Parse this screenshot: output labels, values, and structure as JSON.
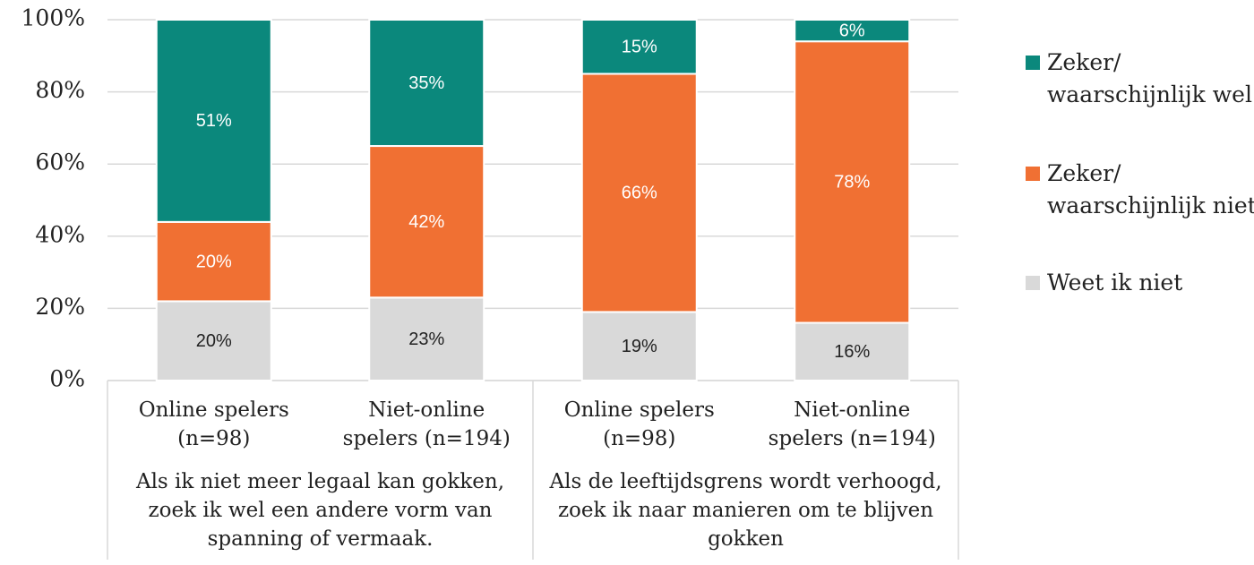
{
  "chart_data": {
    "type": "bar",
    "stack": "percent",
    "categories": [
      "Online spelers (n=98)",
      "Niet-online spelers (n=194)",
      "Online spelers (n=98)",
      "Niet-online spelers (n=194)"
    ],
    "groups": [
      "Als ik niet meer legaal kan gokken, zoek ik wel een andere vorm van spanning of vermaak.",
      "Als de leeftijdsgrens wordt verhoogd, zoek ik naar manieren om te blijven gokken"
    ],
    "series": [
      {
        "name": "Zeker/ waarschijnlijk wel",
        "color": "#0b887c",
        "values": [
          51,
          35,
          15,
          6
        ],
        "value_labels": [
          "51%",
          "35%",
          "15%",
          "6%"
        ]
      },
      {
        "name": "Zeker/ waarschijnlijk niet",
        "color": "#f07033",
        "values": [
          20,
          42,
          66,
          78
        ],
        "value_labels": [
          "20%",
          "42%",
          "66%",
          "78%"
        ]
      },
      {
        "name": "Weet ik niet",
        "color": "#d9d9d9",
        "values": [
          20,
          23,
          19,
          16
        ],
        "value_labels": [
          "20%",
          "23%",
          "19%",
          "16%"
        ]
      }
    ],
    "ylim": [
      0,
      100
    ],
    "yticks": [
      {
        "value": 0,
        "label": "0%"
      },
      {
        "value": 20,
        "label": "20%"
      },
      {
        "value": 40,
        "label": "40%"
      },
      {
        "value": 60,
        "label": "60%"
      },
      {
        "value": 80,
        "label": "80%"
      },
      {
        "value": 100,
        "label": "100%"
      }
    ],
    "grid": true
  }
}
